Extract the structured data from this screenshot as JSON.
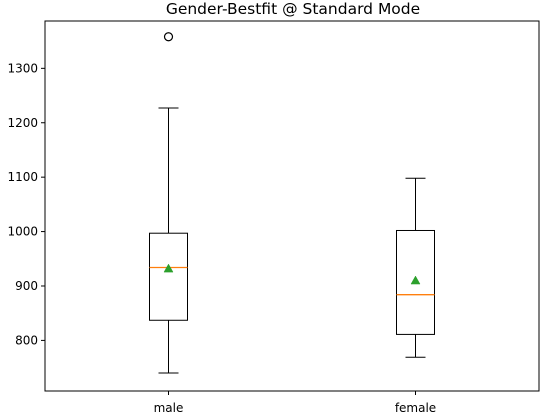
{
  "chart_data": {
    "type": "box",
    "title": "Gender-Bestfit @ Standard Mode",
    "xlabel": "",
    "ylabel": "",
    "categories": [
      "male",
      "female"
    ],
    "ylim": [
      707,
      1387
    ],
    "yticks": [
      800,
      900,
      1000,
      1100,
      1200,
      1300
    ],
    "grid": false,
    "boxes": [
      {
        "label": "male",
        "whisker_low": 740,
        "q1": 837,
        "median": 934,
        "q3": 997,
        "whisker_high": 1227,
        "mean": 932,
        "fliers": [
          1358
        ]
      },
      {
        "label": "female",
        "whisker_low": 769,
        "q1": 811,
        "median": 884,
        "q3": 1002,
        "whisker_high": 1098,
        "mean": 910,
        "fliers": []
      }
    ],
    "colors": {
      "box": "#000000",
      "median": "#ff7f0e",
      "mean": "#2ca02c"
    }
  }
}
